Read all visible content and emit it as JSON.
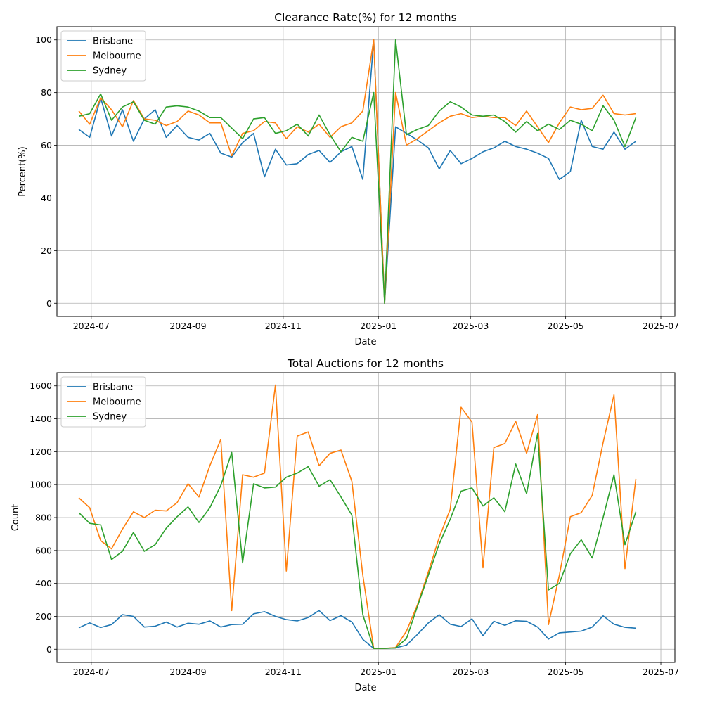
{
  "figure": {
    "colors": {
      "Brisbane": "#1f77b4",
      "Melbourne": "#ff7f0e",
      "Sydney": "#2ca02c",
      "grid": "#b0b0b0"
    }
  },
  "chart_data": [
    {
      "type": "line",
      "title": "Clearance Rate(%) for 12 months",
      "xlabel": "Date",
      "ylabel": "Percent(%)",
      "xlim": [
        "2024-06-09",
        "2025-07-10"
      ],
      "ylim": [
        -5,
        105
      ],
      "grid": true,
      "legend": "top-left",
      "xticks": [
        "2024-07",
        "2024-09",
        "2024-11",
        "2025-01",
        "2025-03",
        "2025-05",
        "2025-07"
      ],
      "yticks": [
        0,
        20,
        40,
        60,
        80,
        100
      ],
      "x": [
        "2024-06-23",
        "2024-06-30",
        "2024-07-07",
        "2024-07-14",
        "2024-07-21",
        "2024-07-28",
        "2024-08-04",
        "2024-08-11",
        "2024-08-18",
        "2024-08-25",
        "2024-09-01",
        "2024-09-08",
        "2024-09-15",
        "2024-09-22",
        "2024-09-29",
        "2024-10-06",
        "2024-10-13",
        "2024-10-20",
        "2024-10-27",
        "2024-11-03",
        "2024-11-10",
        "2024-11-17",
        "2024-11-24",
        "2024-12-01",
        "2024-12-08",
        "2024-12-15",
        "2024-12-22",
        "2024-12-29",
        "2025-01-05",
        "2025-01-12",
        "2025-01-19",
        "2025-01-26",
        "2025-02-02",
        "2025-02-09",
        "2025-02-16",
        "2025-02-23",
        "2025-03-02",
        "2025-03-09",
        "2025-03-16",
        "2025-03-23",
        "2025-03-30",
        "2025-04-06",
        "2025-04-13",
        "2025-04-20",
        "2025-04-27",
        "2025-05-04",
        "2025-05-11",
        "2025-05-18",
        "2025-05-25",
        "2025-06-01",
        "2025-06-08",
        "2025-06-15"
      ],
      "series": [
        {
          "name": "Brisbane",
          "values": [
            66,
            63,
            78,
            63.5,
            73.5,
            61.5,
            70,
            73.5,
            63,
            67.5,
            63,
            62,
            64.5,
            57,
            55.5,
            61,
            64.5,
            48,
            58.5,
            52.5,
            53,
            56.5,
            58,
            53.5,
            57.5,
            59.5,
            47,
            100,
            0,
            67,
            64.5,
            62,
            59,
            51,
            58,
            53,
            55,
            57.5,
            59,
            61.5,
            59.5,
            58.5,
            57,
            55,
            47,
            50,
            69.5,
            59.5,
            58.5,
            65,
            58.5,
            61.5
          ]
        },
        {
          "name": "Melbourne",
          "values": [
            73,
            68,
            78,
            73.5,
            67,
            77,
            70,
            69.5,
            67.5,
            69,
            73,
            71.5,
            68.5,
            68.5,
            56,
            64.5,
            65.5,
            69,
            68.5,
            62.5,
            67,
            65,
            68,
            63,
            67,
            68.5,
            73,
            100,
            0,
            80,
            60,
            62.5,
            65.5,
            68.5,
            71,
            72,
            70.5,
            71,
            70.5,
            70.5,
            67.5,
            73,
            67,
            61,
            68.5,
            74.5,
            73.5,
            74,
            79,
            72,
            71.5,
            72
          ]
        },
        {
          "name": "Sydney",
          "values": [
            71,
            72,
            79.5,
            69.5,
            74.5,
            76.5,
            69.5,
            68,
            74.5,
            75,
            74.5,
            73,
            70.5,
            70.5,
            66.5,
            62.5,
            70,
            70.5,
            64.5,
            65.5,
            68,
            63.5,
            71.5,
            64,
            57.5,
            63,
            61.5,
            80,
            0,
            100,
            64,
            66,
            67.5,
            73,
            76.5,
            74.5,
            71.5,
            71,
            71.5,
            69,
            65,
            69,
            65.5,
            68,
            66,
            69.5,
            68,
            65.5,
            75,
            69.5,
            59.5,
            70.5
          ]
        }
      ]
    },
    {
      "type": "line",
      "title": "Total Auctions for 12 months",
      "xlabel": "Date",
      "ylabel": "Count",
      "xlim": [
        "2024-06-09",
        "2025-07-10"
      ],
      "ylim": [
        -80,
        1680
      ],
      "grid": true,
      "legend": "top-left",
      "xticks": [
        "2024-07",
        "2024-09",
        "2024-11",
        "2025-01",
        "2025-03",
        "2025-05",
        "2025-07"
      ],
      "yticks": [
        0,
        200,
        400,
        600,
        800,
        1000,
        1200,
        1400,
        1600
      ],
      "x": [
        "2024-06-23",
        "2024-06-30",
        "2024-07-07",
        "2024-07-14",
        "2024-07-21",
        "2024-07-28",
        "2024-08-04",
        "2024-08-11",
        "2024-08-18",
        "2024-08-25",
        "2024-09-01",
        "2024-09-08",
        "2024-09-15",
        "2024-09-22",
        "2024-09-29",
        "2024-10-06",
        "2024-10-13",
        "2024-10-20",
        "2024-10-27",
        "2024-11-03",
        "2024-11-10",
        "2024-11-17",
        "2024-11-24",
        "2024-12-01",
        "2024-12-08",
        "2024-12-15",
        "2024-12-22",
        "2024-12-29",
        "2025-01-05",
        "2025-01-12",
        "2025-01-19",
        "2025-01-26",
        "2025-02-02",
        "2025-02-09",
        "2025-02-16",
        "2025-02-23",
        "2025-03-02",
        "2025-03-09",
        "2025-03-16",
        "2025-03-23",
        "2025-03-30",
        "2025-04-06",
        "2025-04-13",
        "2025-04-20",
        "2025-04-27",
        "2025-05-04",
        "2025-05-11",
        "2025-05-18",
        "2025-05-25",
        "2025-06-01",
        "2025-06-08",
        "2025-06-15"
      ],
      "series": [
        {
          "name": "Brisbane",
          "values": [
            130,
            160,
            132,
            150,
            210,
            200,
            135,
            140,
            165,
            135,
            158,
            152,
            172,
            135,
            150,
            152,
            215,
            228,
            200,
            180,
            172,
            193,
            235,
            174,
            204,
            165,
            60,
            5,
            5,
            8,
            25,
            90,
            160,
            210,
            152,
            138,
            185,
            82,
            170,
            145,
            173,
            170,
            135,
            62,
            100,
            105,
            110,
            135,
            203,
            152,
            133,
            128
          ]
        },
        {
          "name": "Melbourne",
          "values": [
            920,
            860,
            660,
            610,
            730,
            835,
            800,
            845,
            840,
            890,
            1005,
            925,
            1115,
            1275,
            235,
            1060,
            1045,
            1070,
            1605,
            475,
            1295,
            1320,
            1115,
            1190,
            1210,
            1020,
            450,
            5,
            5,
            10,
            110,
            270,
            470,
            680,
            850,
            1470,
            1380,
            495,
            1225,
            1250,
            1385,
            1190,
            1425,
            150,
            450,
            805,
            830,
            935,
            1255,
            1545,
            490,
            1035
          ]
        },
        {
          "name": "Sydney",
          "values": [
            830,
            765,
            755,
            545,
            595,
            710,
            595,
            635,
            735,
            805,
            865,
            770,
            860,
            995,
            1195,
            525,
            1005,
            980,
            985,
            1045,
            1070,
            1110,
            990,
            1030,
            925,
            815,
            210,
            5,
            5,
            8,
            65,
            260,
            450,
            640,
            790,
            960,
            980,
            870,
            920,
            835,
            1125,
            945,
            1310,
            360,
            400,
            580,
            665,
            555,
            800,
            1060,
            635,
            835
          ]
        }
      ]
    }
  ]
}
